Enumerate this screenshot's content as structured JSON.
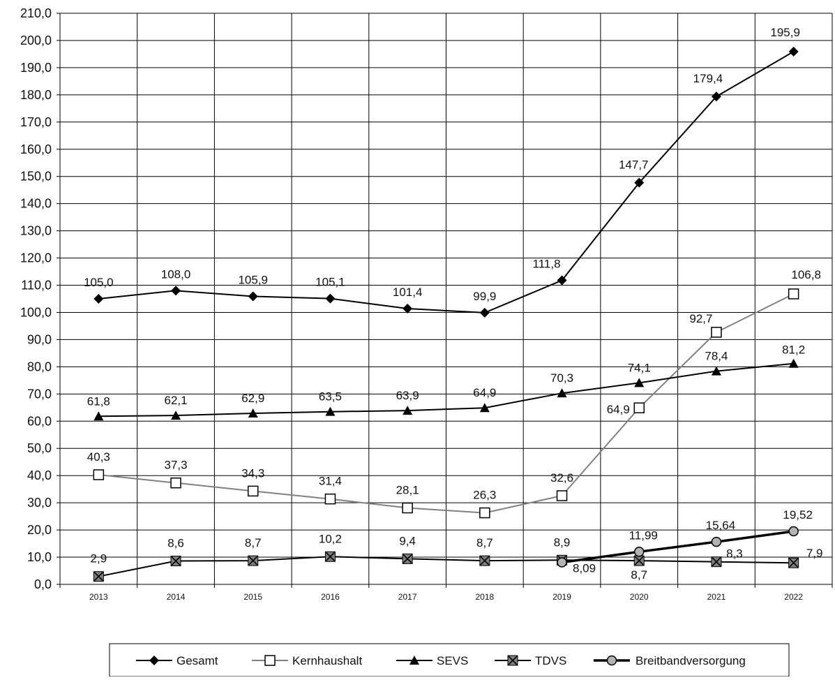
{
  "chart_data": {
    "type": "line",
    "title": "",
    "xlabel": "",
    "ylabel": "",
    "ylim": [
      0,
      210
    ],
    "ystep": 10,
    "grid": true,
    "legend_position": "bottom",
    "categories": [
      "2013",
      "2014",
      "2015",
      "2016",
      "2017",
      "2018",
      "2019",
      "2020",
      "2021",
      "2022"
    ],
    "y_tick_labels": [
      "0,0",
      "10,0",
      "20,0",
      "30,0",
      "40,0",
      "50,0",
      "60,0",
      "70,0",
      "80,0",
      "90,0",
      "100,0",
      "110,0",
      "120,0",
      "130,0",
      "140,0",
      "150,0",
      "160,0",
      "170,0",
      "180,0",
      "190,0",
      "200,0",
      "210,0"
    ],
    "series": [
      {
        "name": "Gesamt",
        "marker": "diamond",
        "color": "#000000",
        "values": [
          105.0,
          108.0,
          105.9,
          105.1,
          101.4,
          99.9,
          111.8,
          147.7,
          179.4,
          195.9
        ],
        "labels": [
          "105,0",
          "108,0",
          "105,9",
          "105,1",
          "101,4",
          "99,9",
          "111,8",
          "147,7",
          "179,4",
          "195,9"
        ]
      },
      {
        "name": "Kernhaushalt",
        "marker": "square-open",
        "color": "#808080",
        "values": [
          40.3,
          37.3,
          34.3,
          31.4,
          28.1,
          26.3,
          32.6,
          64.9,
          92.7,
          106.8
        ],
        "labels": [
          "40,3",
          "37,3",
          "34,3",
          "31,4",
          "28,1",
          "26,3",
          "32,6",
          "64,9",
          "92,7",
          "106,8"
        ]
      },
      {
        "name": "SEVS",
        "marker": "triangle",
        "color": "#000000",
        "values": [
          61.8,
          62.1,
          62.9,
          63.5,
          63.9,
          64.9,
          70.3,
          74.1,
          78.4,
          81.2
        ],
        "labels": [
          "61,8",
          "62,1",
          "62,9",
          "63,5",
          "63,9",
          "64,9",
          "70,3",
          "74,1",
          "78,4",
          "81,2"
        ]
      },
      {
        "name": "TDVS",
        "marker": "x-square",
        "color": "#000000",
        "values": [
          2.9,
          8.6,
          8.7,
          10.2,
          9.4,
          8.7,
          8.9,
          8.7,
          8.3,
          7.9
        ],
        "labels": [
          "2,9",
          "8,6",
          "8,7",
          "10,2",
          "9,4",
          "8,7",
          "8,9",
          "8,7",
          "8,3",
          "7,9"
        ]
      },
      {
        "name": "Breitbandversorgung",
        "marker": "circle",
        "color": "#000000",
        "values": [
          null,
          null,
          null,
          null,
          null,
          null,
          8.09,
          11.99,
          15.64,
          19.52
        ],
        "labels": [
          null,
          null,
          null,
          null,
          null,
          null,
          "8,09",
          "11,99",
          "15,64",
          "19,52"
        ]
      }
    ]
  }
}
